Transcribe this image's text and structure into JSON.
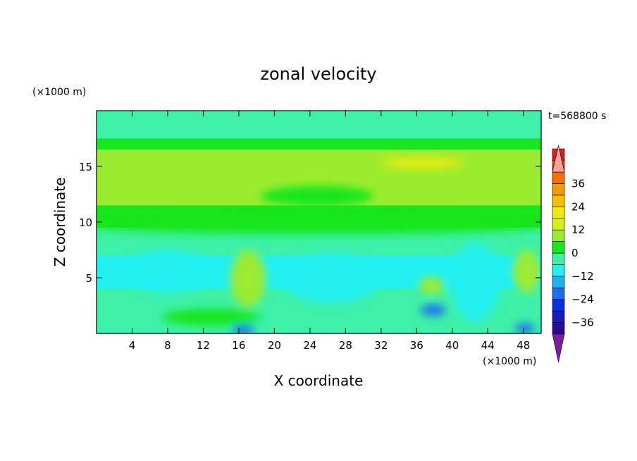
{
  "chart_data": {
    "type": "heatmap",
    "title": "zonal velocity",
    "xlabel": "X coordinate",
    "ylabel": "Z coordinate",
    "x_unit": "(×1000 m)",
    "y_unit": "(×1000 m)",
    "time_label": "t=568800 s",
    "xlim": [
      0,
      50
    ],
    "ylim": [
      0,
      20
    ],
    "x_ticks": [
      4,
      8,
      12,
      16,
      20,
      24,
      28,
      32,
      36,
      40,
      44,
      48
    ],
    "y_ticks": [
      5,
      10,
      15
    ],
    "colorbar": {
      "min": -42,
      "max": 42,
      "step": 6,
      "extend": "both",
      "tick_values": [
        36,
        24,
        12,
        0,
        -12,
        -24,
        -36
      ],
      "colors": [
        "#7a1fa2",
        "#2d0a8c",
        "#1a1ab5",
        "#0b30e0",
        "#1e6ef0",
        "#1fb1f5",
        "#22f0f0",
        "#3ef0a8",
        "#18e61e",
        "#9bec30",
        "#d5f01c",
        "#f0ea10",
        "#f5c000",
        "#f59a00",
        "#f57000",
        "#f04000",
        "#e61818",
        "#f5a0a0"
      ]
    },
    "field_bands": [
      {
        "z_range": [
          0,
          1.5
        ],
        "value": -4
      },
      {
        "z_range": [
          1.5,
          4
        ],
        "value": -6
      },
      {
        "z_range": [
          4,
          7
        ],
        "value": -8
      },
      {
        "z_range": [
          7,
          9.5
        ],
        "value": -3
      },
      {
        "z_range": [
          9.5,
          11.5
        ],
        "value": 2
      },
      {
        "z_range": [
          11.5,
          16.5
        ],
        "value": 8
      },
      {
        "z_range": [
          16.5,
          17.5
        ],
        "value": 4
      },
      {
        "z_range": [
          17.5,
          20
        ],
        "value": -4
      }
    ]
  }
}
